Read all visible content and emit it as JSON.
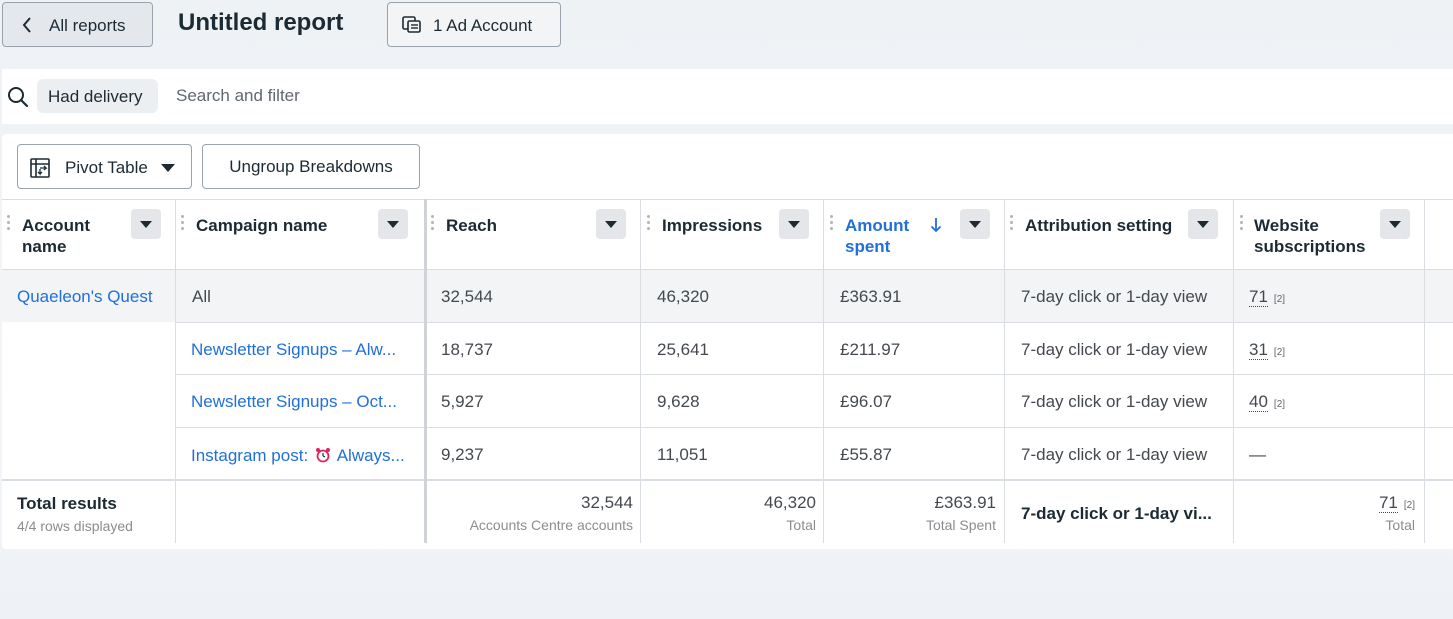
{
  "header": {
    "back_label": "All reports",
    "title": "Untitled report",
    "account_button_label": "1 Ad Account"
  },
  "search": {
    "chip_label": "Had delivery",
    "placeholder": "Search and filter"
  },
  "toolbar": {
    "pivot_label": "Pivot Table",
    "ungroup_label": "Ungroup Breakdowns"
  },
  "table": {
    "columns": [
      {
        "label_line1": "Account",
        "label_line2": "name"
      },
      {
        "label_line1": "Campaign name",
        "label_line2": ""
      },
      {
        "label_line1": "Reach",
        "label_line2": ""
      },
      {
        "label_line1": "Impressions",
        "label_line2": ""
      },
      {
        "label_line1": "Amount",
        "label_line2": "spent"
      },
      {
        "label_line1": "Attribution setting",
        "label_line2": ""
      },
      {
        "label_line1": "Website",
        "label_line2": "subscriptions"
      }
    ],
    "sorted_column": "Amount spent",
    "rows": [
      {
        "account": "Quaeleon's Quest",
        "campaign": "All",
        "reach": "32,544",
        "impressions": "46,320",
        "amount": "£363.91",
        "attribution": "7-day click or 1-day view",
        "subs": "71",
        "subs_note": "[2]"
      },
      {
        "account": "",
        "campaign": "Newsletter Signups – Alw...",
        "reach": "18,737",
        "impressions": "25,641",
        "amount": "£211.97",
        "attribution": "7-day click or 1-day view",
        "subs": "31",
        "subs_note": "[2]"
      },
      {
        "account": "",
        "campaign": "Newsletter Signups – Oct...",
        "reach": "5,927",
        "impressions": "9,628",
        "amount": "£96.07",
        "attribution": "7-day click or 1-day view",
        "subs": "40",
        "subs_note": "[2]"
      },
      {
        "account": "",
        "campaign_prefix": "Instagram post:",
        "campaign_suffix": "Always...",
        "reach": "9,237",
        "impressions": "11,051",
        "amount": "£55.87",
        "attribution": "7-day click or 1-day view",
        "subs": "—",
        "subs_note": ""
      }
    ],
    "totals": {
      "title": "Total results",
      "subtitle": "4/4 rows displayed",
      "reach": "32,544",
      "reach_caption": "Accounts Centre accounts",
      "impressions": "46,320",
      "impressions_caption": "Total",
      "amount": "£363.91",
      "amount_caption": "Total Spent",
      "attribution": "7-day click or 1-day vi...",
      "subs": "71",
      "subs_note": "[2]",
      "subs_caption": "Total"
    }
  },
  "colors": {
    "link": "#216fdb",
    "text": "#1c2b33",
    "muted": "#8a8d91",
    "highlight_row": "#f2f4f5"
  }
}
